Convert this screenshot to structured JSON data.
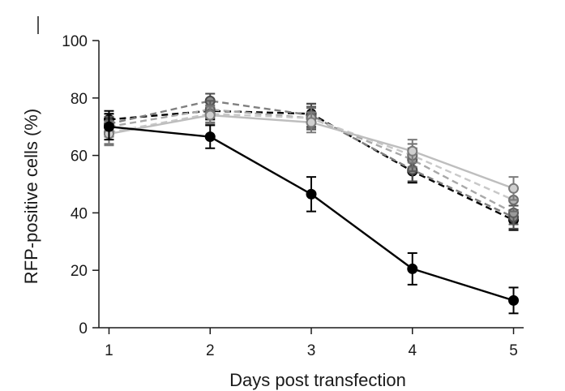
{
  "chart_data": {
    "type": "line",
    "xlabel": "Days post transfection",
    "ylabel": "RFP-positive cells (%)",
    "x": [
      1,
      2,
      3,
      4,
      5
    ],
    "xlim": [
      0.9,
      5.1
    ],
    "ylim": [
      0,
      100
    ],
    "xticks": [
      1,
      2,
      3,
      4,
      5
    ],
    "yticks": [
      0,
      20,
      40,
      60,
      80,
      100
    ],
    "grid": false,
    "series": [
      {
        "values": [
          72.5,
          75.5,
          74.5,
          54.5,
          37.5
        ],
        "err": [
          3,
          3,
          3.5,
          4,
          3.5
        ],
        "color": "#000000",
        "dash": "8,5",
        "marker_fill": "#3a3a3a",
        "marker_stroke": "#000000"
      },
      {
        "values": [
          71,
          79,
          74,
          55,
          38.5
        ],
        "err": [
          3.5,
          2.5,
          4,
          4,
          4
        ],
        "color": "#808080",
        "dash": "8,5",
        "marker_fill": "#8a8a8a",
        "marker_stroke": "#4a4a4a"
      },
      {
        "values": [
          70,
          76,
          73,
          58.5,
          40
        ],
        "err": [
          3.5,
          3,
          4,
          4,
          4
        ],
        "color": "#a8a8a8",
        "dash": "8,5",
        "marker_fill": "#9a9a9a",
        "marker_stroke": "#5a5a5a"
      },
      {
        "values": [
          68,
          74.5,
          73,
          60,
          44.5
        ],
        "err": [
          4,
          3,
          3.5,
          4,
          4
        ],
        "color": "#c8c8c8",
        "dash": "8,5",
        "marker_fill": "#b4b4b4",
        "marker_stroke": "#6a6a6a"
      },
      {
        "values": [
          67.5,
          74,
          71.5,
          61.5,
          48.5
        ],
        "err": [
          4,
          3,
          3.5,
          4,
          4
        ],
        "color": "#bebebe",
        "dash": "",
        "marker_fill": "#cfcfcf",
        "marker_stroke": "#7a7a7a"
      },
      {
        "values": [
          70,
          66.5,
          46.5,
          20.5,
          9.5
        ],
        "err": [
          4.5,
          4,
          6,
          5.5,
          4.5
        ],
        "color": "#000000",
        "dash": "",
        "marker_fill": "#000000",
        "marker_stroke": "#000000"
      }
    ]
  }
}
